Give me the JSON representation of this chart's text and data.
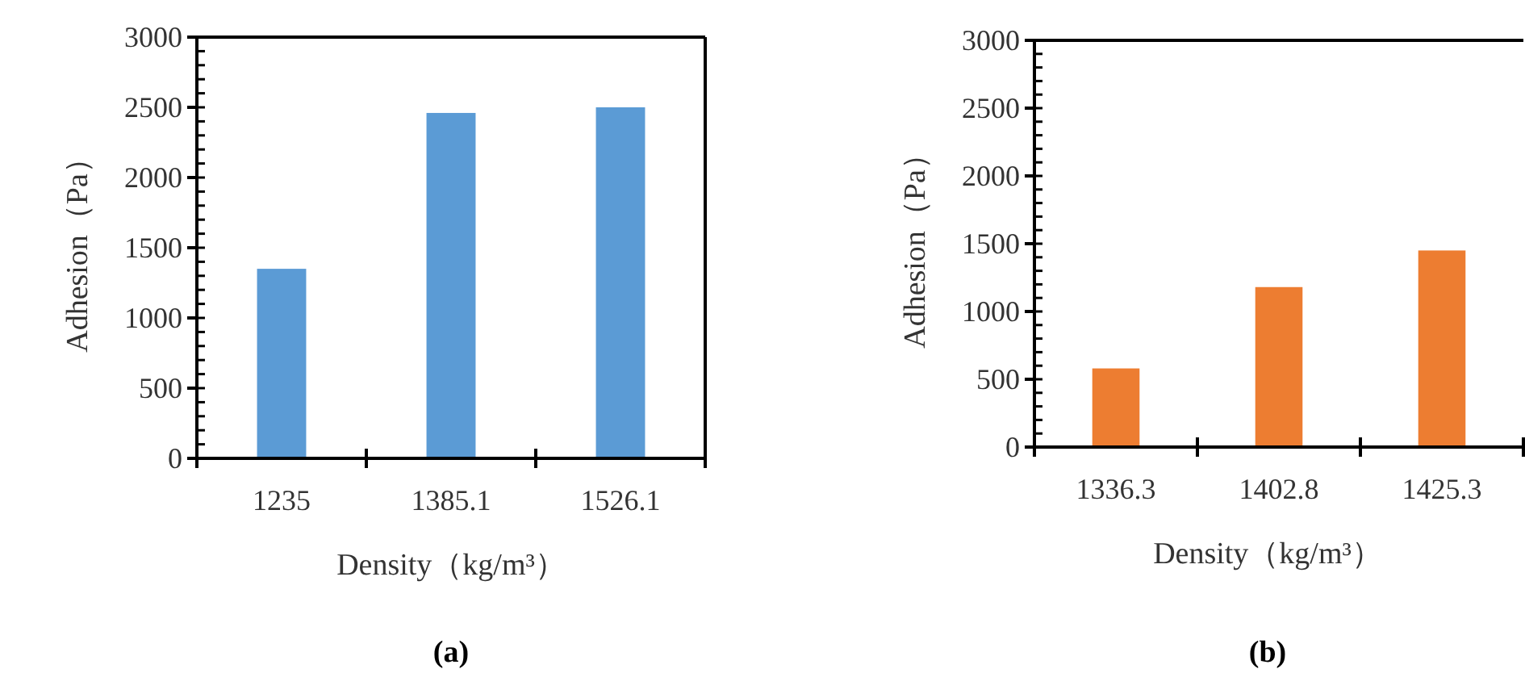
{
  "chart_data": [
    {
      "type": "bar",
      "categories": [
        "1235",
        "1385.1",
        "1526.1"
      ],
      "values": [
        1350,
        2460,
        2500
      ],
      "color": "#5b9bd5",
      "xlabel": "Density（kg/m³）",
      "ylabel": "Adhesion（Pa）",
      "ylim": [
        0,
        3000
      ],
      "yticks": [
        0,
        500,
        1000,
        1500,
        2000,
        2500,
        3000
      ],
      "annotations": [
        "(a)"
      ]
    },
    {
      "type": "bar",
      "categories": [
        "1336.3",
        "1402.8",
        "1425.3"
      ],
      "values": [
        580,
        1180,
        1450
      ],
      "color": "#ed7d31",
      "xlabel": "Density（kg/m³）",
      "ylabel": "Adhesion（Pa）",
      "ylim": [
        0,
        3000
      ],
      "yticks": [
        0,
        500,
        1000,
        1500,
        2000,
        2500,
        3000
      ],
      "annotations": [
        "(b)"
      ]
    }
  ]
}
